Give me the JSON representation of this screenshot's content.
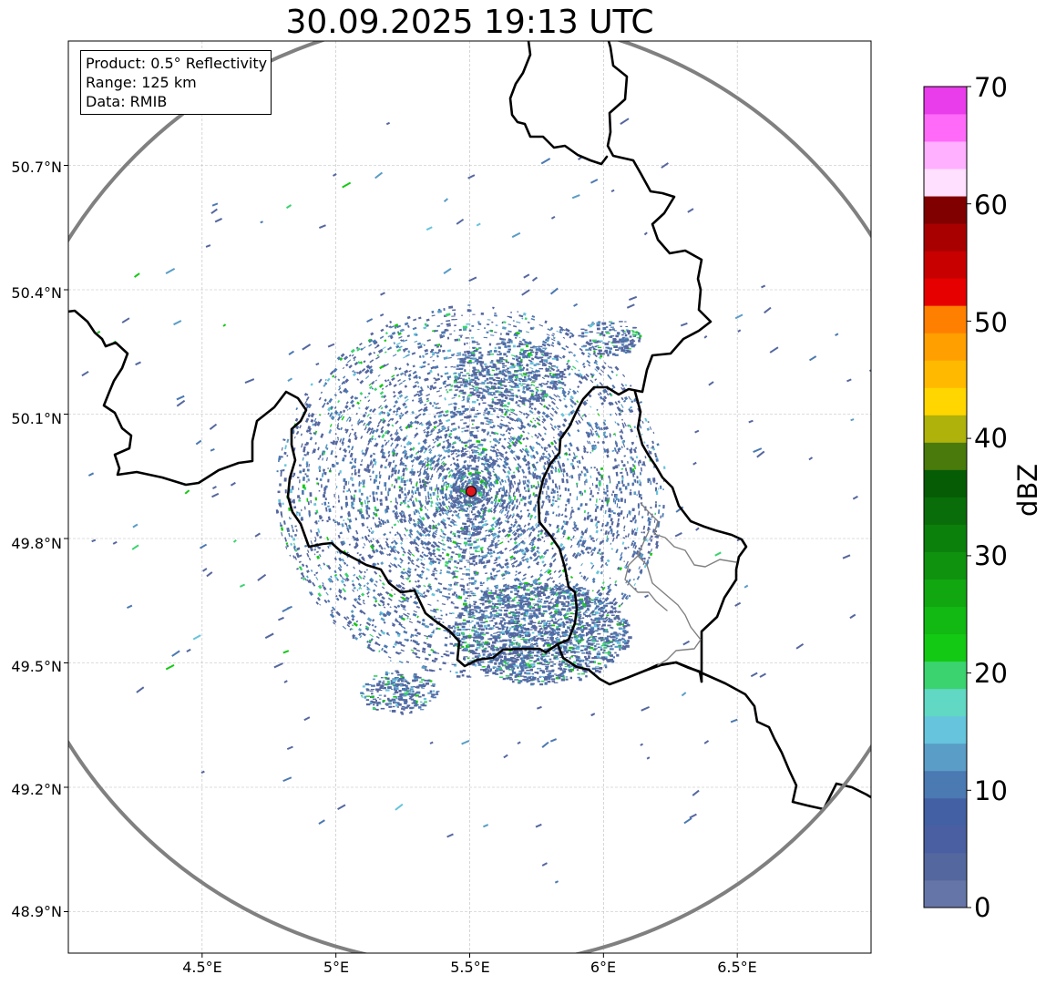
{
  "title": "30.09.2025 19:13 UTC",
  "info_box": {
    "product": "Product: 0.5° Reflectivity",
    "range": "Range: 125 km",
    "data_source": "Data: RMIB"
  },
  "axes": {
    "lon_ticks": [
      "4.5°E",
      "5°E",
      "5.5°E",
      "6°E",
      "6.5°E"
    ],
    "lat_ticks": [
      "50.7°N",
      "50.4°N",
      "50.1°N",
      "49.8°N",
      "49.5°N",
      "49.2°N",
      "48.9°N"
    ],
    "lon_range": [
      4.0,
      7.0
    ],
    "lat_range": [
      48.8,
      51.0
    ]
  },
  "radar": {
    "site_lon": 5.505,
    "site_lat": 49.914,
    "range_km": 125,
    "site_color": "#e0161c",
    "range_ring_color": "#808080"
  },
  "colorbar": {
    "label": "dBZ",
    "ticks": [
      "0",
      "10",
      "20",
      "30",
      "40",
      "50",
      "60",
      "70"
    ],
    "min": 0,
    "max": 70,
    "step": 2.5,
    "colors": [
      "#6675a8",
      "#55679f",
      "#4a5fa1",
      "#4360a4",
      "#4b79b2",
      "#5a9dc6",
      "#66c4dd",
      "#60d8c3",
      "#3bd36f",
      "#14c914",
      "#12b912",
      "#11a711",
      "#0f930f",
      "#0b800b",
      "#096e09",
      "#055c05",
      "#497a0b",
      "#aeb20b",
      "#ffd600",
      "#ffba00",
      "#ff9f00",
      "#ff7f00",
      "#e60000",
      "#c80000",
      "#a80000",
      "#800000",
      "#ffe0ff",
      "#ffb0ff",
      "#ff6af8",
      "#e93cea"
    ]
  },
  "colors": {
    "border_main": "#000000",
    "border_admin": "#808080",
    "grid": "#bbbbbb",
    "echo_primary": "#5b72a6"
  }
}
